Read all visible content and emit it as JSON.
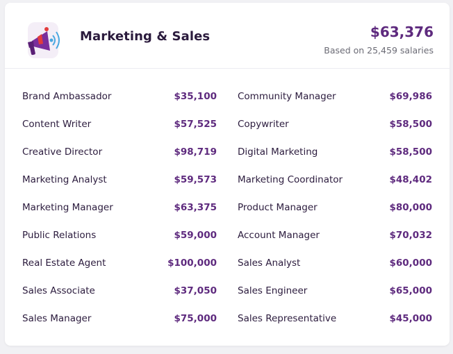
{
  "header": {
    "title": "Marketing & Sales",
    "average_salary": "$63,376",
    "based_on": "Based on 25,459 salaries"
  },
  "colors": {
    "accent": "#5e2a7e",
    "text_dark": "#2b1b3d",
    "megaphone_purple": "#7a2e9c",
    "megaphone_red": "#e23c3c",
    "megaphone_blue": "#4aa8e0"
  },
  "icons": {
    "logo": "megaphone-icon"
  },
  "left_column": [
    {
      "job": "Brand Ambassador",
      "salary": "$35,100"
    },
    {
      "job": "Content Writer",
      "salary": "$57,525"
    },
    {
      "job": "Creative Director",
      "salary": "$98,719"
    },
    {
      "job": "Marketing Analyst",
      "salary": "$59,573"
    },
    {
      "job": "Marketing Manager",
      "salary": "$63,375"
    },
    {
      "job": "Public Relations",
      "salary": "$59,000"
    },
    {
      "job": "Real Estate Agent",
      "salary": "$100,000"
    },
    {
      "job": "Sales Associate",
      "salary": "$37,050"
    },
    {
      "job": "Sales Manager",
      "salary": "$75,000"
    }
  ],
  "right_column": [
    {
      "job": "Community Manager",
      "salary": "$69,986"
    },
    {
      "job": "Copywriter",
      "salary": "$58,500"
    },
    {
      "job": "Digital Marketing",
      "salary": "$58,500"
    },
    {
      "job": "Marketing Coordinator",
      "salary": "$48,402"
    },
    {
      "job": "Product Manager",
      "salary": "$80,000"
    },
    {
      "job": "Account Manager",
      "salary": "$70,032"
    },
    {
      "job": "Sales Analyst",
      "salary": "$60,000"
    },
    {
      "job": "Sales Engineer",
      "salary": "$65,000"
    },
    {
      "job": "Sales Representative",
      "salary": "$45,000"
    }
  ]
}
